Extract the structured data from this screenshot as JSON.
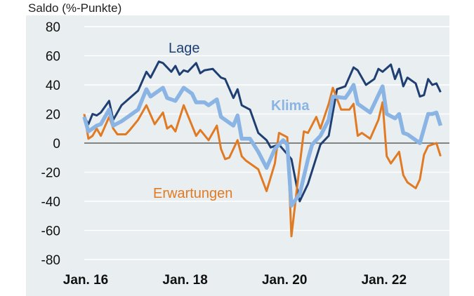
{
  "chart_data": {
    "type": "line",
    "title": "",
    "ylabel": "Saldo (%-Punkte)",
    "xlabel": "",
    "ylim": [
      -80,
      80
    ],
    "yticks": [
      "80",
      "60",
      "40",
      "20",
      "0",
      "-20",
      "-40",
      "-60",
      "-80"
    ],
    "xticks": [
      {
        "date": "2016-01",
        "label": "Jan. 16"
      },
      {
        "date": "2018-01",
        "label": "Jan. 18"
      },
      {
        "date": "2020-01",
        "label": "Jan. 20"
      },
      {
        "date": "2022-01",
        "label": "Jan. 22"
      }
    ],
    "grid": true,
    "legend": "inline labels",
    "series": [
      {
        "name": "Lage",
        "color": "#1f3f73",
        "points": [
          [
            "2016-01",
            18
          ],
          [
            "2016-02",
            13
          ],
          [
            "2016-03",
            20
          ],
          [
            "2016-04",
            19
          ],
          [
            "2016-05",
            21
          ],
          [
            "2016-07",
            29
          ],
          [
            "2016-08",
            16
          ],
          [
            "2016-10",
            26
          ],
          [
            "2016-12",
            31
          ],
          [
            "2017-02",
            36
          ],
          [
            "2017-04",
            49
          ],
          [
            "2017-05",
            45
          ],
          [
            "2017-07",
            56
          ],
          [
            "2017-08",
            55
          ],
          [
            "2017-10",
            49
          ],
          [
            "2017-11",
            53
          ],
          [
            "2017-12",
            47
          ],
          [
            "2018-01",
            50
          ],
          [
            "2018-02",
            49
          ],
          [
            "2018-04",
            55
          ],
          [
            "2018-05",
            48
          ],
          [
            "2018-06",
            50
          ],
          [
            "2018-08",
            51
          ],
          [
            "2018-10",
            45
          ],
          [
            "2018-11",
            44
          ],
          [
            "2019-01",
            31
          ],
          [
            "2019-02",
            37
          ],
          [
            "2019-03",
            26
          ],
          [
            "2019-05",
            23
          ],
          [
            "2019-07",
            7
          ],
          [
            "2019-09",
            2
          ],
          [
            "2019-10",
            -3
          ],
          [
            "2019-12",
            -1
          ],
          [
            "2020-03",
            -11
          ],
          [
            "2020-05",
            -40
          ],
          [
            "2020-07",
            -28
          ],
          [
            "2020-08",
            -19
          ],
          [
            "2020-10",
            -1
          ],
          [
            "2020-12",
            5
          ],
          [
            "2021-01",
            21
          ],
          [
            "2021-02",
            37
          ],
          [
            "2021-04",
            39
          ],
          [
            "2021-06",
            52
          ],
          [
            "2021-07",
            50
          ],
          [
            "2021-09",
            40
          ],
          [
            "2021-11",
            44
          ],
          [
            "2021-12",
            51
          ],
          [
            "2022-01",
            49
          ],
          [
            "2022-03",
            54
          ],
          [
            "2022-04",
            44
          ],
          [
            "2022-05",
            51
          ],
          [
            "2022-06",
            39
          ],
          [
            "2022-07",
            45
          ],
          [
            "2022-09",
            41
          ],
          [
            "2022-10",
            32
          ],
          [
            "2022-11",
            33
          ],
          [
            "2022-12",
            44
          ],
          [
            "2023-01",
            40
          ],
          [
            "2023-02",
            41
          ],
          [
            "2023-03",
            35
          ]
        ]
      },
      {
        "name": "Klima",
        "color": "#8ab4e3",
        "points": [
          [
            "2016-01",
            18
          ],
          [
            "2016-02",
            8
          ],
          [
            "2016-04",
            12
          ],
          [
            "2016-05",
            13
          ],
          [
            "2016-07",
            23
          ],
          [
            "2016-08",
            12
          ],
          [
            "2016-10",
            15
          ],
          [
            "2016-12",
            19
          ],
          [
            "2017-02",
            23
          ],
          [
            "2017-04",
            37
          ],
          [
            "2017-05",
            32
          ],
          [
            "2017-08",
            38
          ],
          [
            "2017-09",
            31
          ],
          [
            "2017-11",
            29
          ],
          [
            "2018-01",
            38
          ],
          [
            "2018-03",
            34
          ],
          [
            "2018-04",
            28
          ],
          [
            "2018-06",
            28
          ],
          [
            "2018-07",
            26
          ],
          [
            "2018-09",
            30
          ],
          [
            "2018-10",
            18
          ],
          [
            "2019-01",
            12
          ],
          [
            "2019-02",
            19
          ],
          [
            "2019-03",
            3
          ],
          [
            "2019-05",
            3
          ],
          [
            "2019-07",
            -6
          ],
          [
            "2019-09",
            -17
          ],
          [
            "2019-11",
            -4
          ],
          [
            "2020-01",
            2
          ],
          [
            "2020-02",
            -1
          ],
          [
            "2020-03",
            -43
          ],
          [
            "2020-05",
            -35
          ],
          [
            "2020-07",
            -11
          ],
          [
            "2020-08",
            -1
          ],
          [
            "2020-10",
            5
          ],
          [
            "2020-12",
            16
          ],
          [
            "2021-01",
            32
          ],
          [
            "2021-04",
            31
          ],
          [
            "2021-05",
            35
          ],
          [
            "2021-06",
            40
          ],
          [
            "2021-07",
            27
          ],
          [
            "2021-10",
            21
          ],
          [
            "2022-01",
            39
          ],
          [
            "2022-02",
            20
          ],
          [
            "2022-04",
            17
          ],
          [
            "2022-05",
            20
          ],
          [
            "2022-06",
            7
          ],
          [
            "2022-07",
            6
          ],
          [
            "2022-10",
            0
          ],
          [
            "2022-12",
            20
          ],
          [
            "2023-01",
            20
          ],
          [
            "2023-02",
            21
          ],
          [
            "2023-03",
            12
          ]
        ]
      },
      {
        "name": "Erwartungen",
        "color": "#e07b24",
        "points": [
          [
            "2016-01",
            20
          ],
          [
            "2016-02",
            3
          ],
          [
            "2016-03",
            5
          ],
          [
            "2016-04",
            10
          ],
          [
            "2016-05",
            5
          ],
          [
            "2016-07",
            18
          ],
          [
            "2016-08",
            10
          ],
          [
            "2016-09",
            6
          ],
          [
            "2016-11",
            6
          ],
          [
            "2016-12",
            9
          ],
          [
            "2017-02",
            16
          ],
          [
            "2017-04",
            26
          ],
          [
            "2017-06",
            13
          ],
          [
            "2017-08",
            21
          ],
          [
            "2017-09",
            10
          ],
          [
            "2017-10",
            12
          ],
          [
            "2017-11",
            8
          ],
          [
            "2018-01",
            26
          ],
          [
            "2018-02",
            19
          ],
          [
            "2018-04",
            5
          ],
          [
            "2018-05",
            9
          ],
          [
            "2018-07",
            2
          ],
          [
            "2018-09",
            12
          ],
          [
            "2018-10",
            -4
          ],
          [
            "2018-11",
            -11
          ],
          [
            "2018-12",
            -10
          ],
          [
            "2019-02",
            2
          ],
          [
            "2019-03",
            -9
          ],
          [
            "2019-04",
            -12
          ],
          [
            "2019-07",
            -18
          ],
          [
            "2019-09",
            -33
          ],
          [
            "2019-11",
            -14
          ],
          [
            "2019-12",
            7
          ],
          [
            "2020-02",
            4
          ],
          [
            "2020-03",
            -64
          ],
          [
            "2020-05",
            -15
          ],
          [
            "2020-06",
            8
          ],
          [
            "2020-07",
            7
          ],
          [
            "2020-09",
            18
          ],
          [
            "2020-10",
            10
          ],
          [
            "2020-12",
            27
          ],
          [
            "2021-01",
            38
          ],
          [
            "2021-03",
            23
          ],
          [
            "2021-05",
            23
          ],
          [
            "2021-06",
            27
          ],
          [
            "2021-07",
            5
          ],
          [
            "2021-08",
            7
          ],
          [
            "2021-10",
            3
          ],
          [
            "2021-12",
            16
          ],
          [
            "2022-01",
            28
          ],
          [
            "2022-02",
            -9
          ],
          [
            "2022-03",
            -14
          ],
          [
            "2022-05",
            -6
          ],
          [
            "2022-06",
            -22
          ],
          [
            "2022-07",
            -27
          ],
          [
            "2022-09",
            -31
          ],
          [
            "2022-10",
            -25
          ],
          [
            "2022-11",
            -8
          ],
          [
            "2022-12",
            -2
          ],
          [
            "2023-02",
            0
          ],
          [
            "2023-03",
            -9
          ]
        ]
      }
    ]
  }
}
